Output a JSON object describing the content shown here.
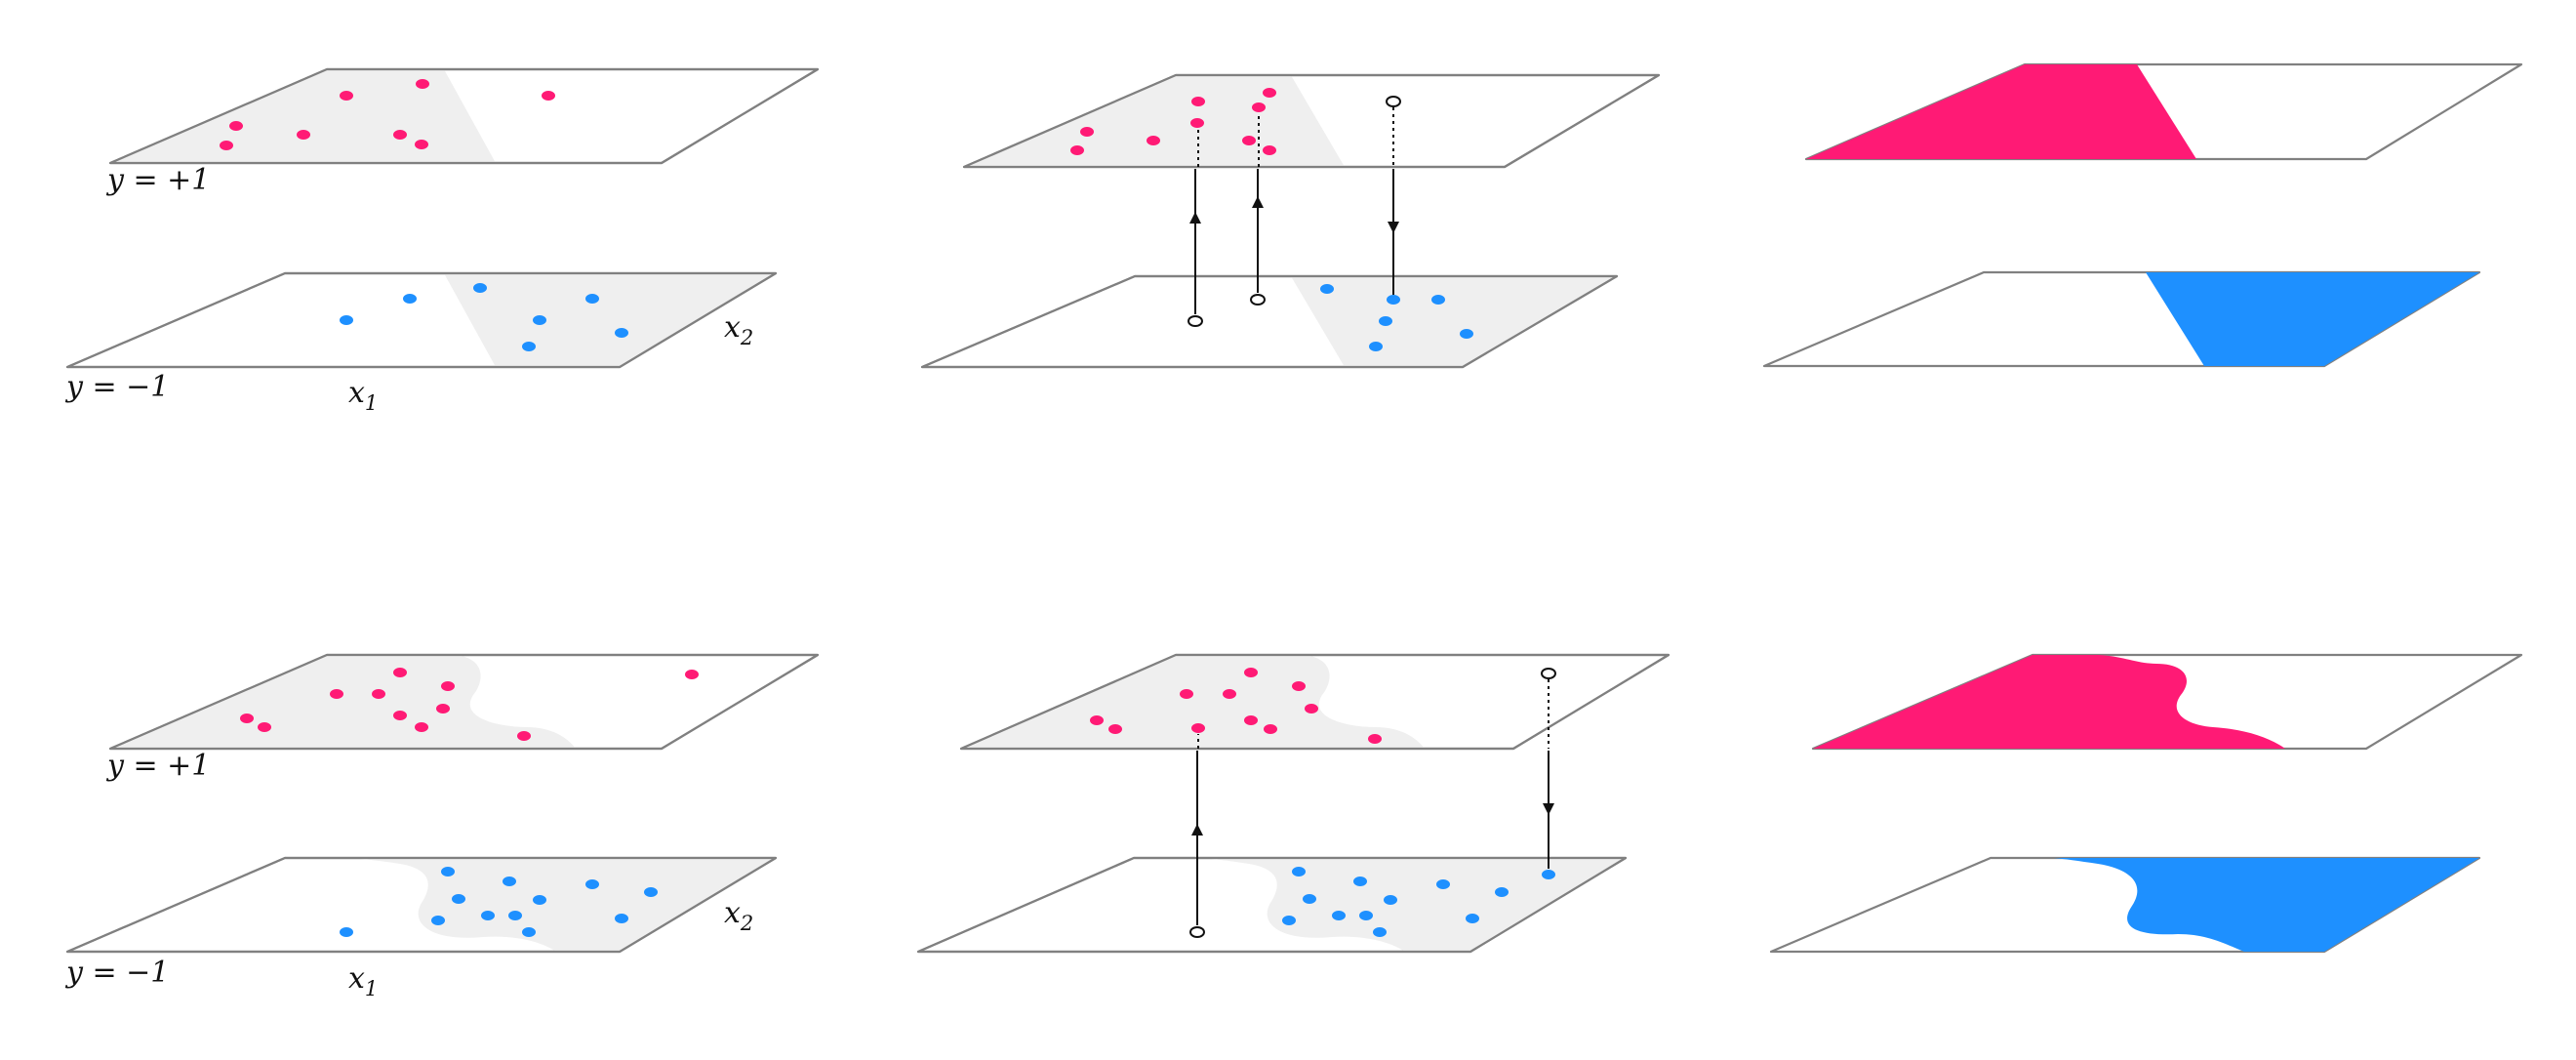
{
  "labels": {
    "y_top": "y = +1",
    "y_bottom": "y = −1",
    "x1": "x",
    "x1_sub": "1",
    "x2": "x",
    "x2_sub": "2"
  },
  "colors": {
    "positive": "#ff1a75",
    "negative": "#1e90ff",
    "shaded_region": "#efefef",
    "plane_edge": "#808080"
  },
  "rows": [
    {
      "name": "linear-boundary",
      "panels": [
        "data",
        "flips",
        "decision"
      ]
    },
    {
      "name": "nonlinear-boundary",
      "panels": [
        "data",
        "flips",
        "decision"
      ]
    }
  ]
}
